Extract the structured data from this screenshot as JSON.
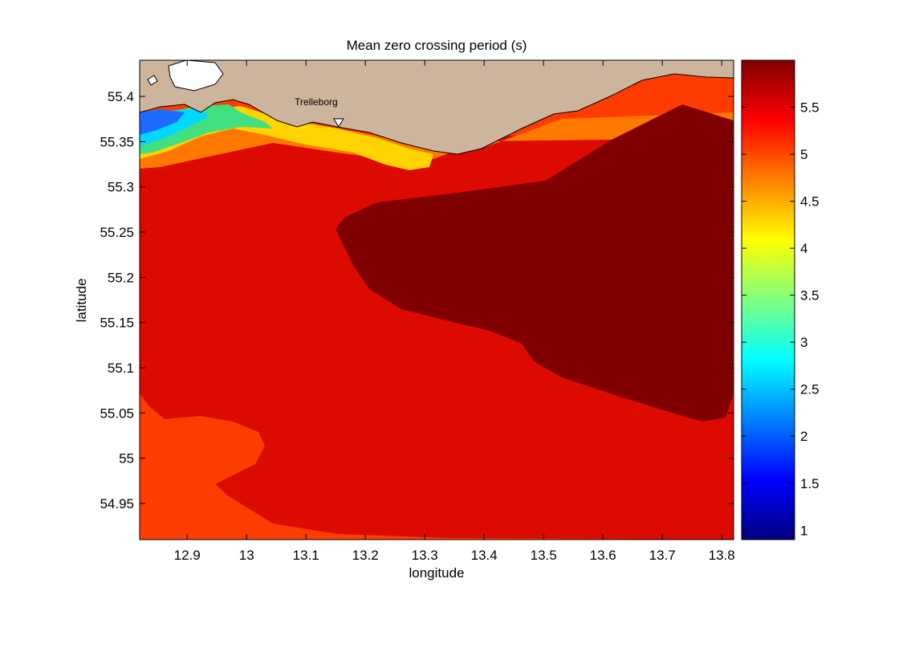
{
  "chart_data": {
    "type": "heatmap",
    "title": "Mean zero crossing period (s)",
    "xlabel": "longitude",
    "ylabel": "latitude",
    "xlim": [
      12.82,
      13.82
    ],
    "ylim": [
      54.91,
      55.44
    ],
    "x_ticks": [
      "12.9",
      "13",
      "13.1",
      "13.2",
      "13.3",
      "13.4",
      "13.5",
      "13.6",
      "13.7",
      "13.8"
    ],
    "x_tick_values": [
      12.9,
      13.0,
      13.1,
      13.2,
      13.3,
      13.4,
      13.5,
      13.6,
      13.7,
      13.8
    ],
    "y_ticks": [
      "54.95",
      "55",
      "55.05",
      "55.1",
      "55.15",
      "55.2",
      "55.25",
      "55.3",
      "55.35",
      "55.4"
    ],
    "y_tick_values": [
      54.95,
      55.0,
      55.05,
      55.1,
      55.15,
      55.2,
      55.25,
      55.3,
      55.35,
      55.4
    ],
    "colorbar": {
      "colormap": "jet",
      "range": [
        0.9,
        6.0
      ],
      "ticks": [
        "1",
        "1.5",
        "2",
        "2.5",
        "3",
        "3.5",
        "4",
        "4.5",
        "5",
        "5.5"
      ],
      "tick_values": [
        1,
        1.5,
        2,
        2.5,
        3,
        3.5,
        4,
        4.5,
        5,
        5.5
      ]
    },
    "grid": false,
    "land_color": "#cdb49c",
    "annotations": [
      {
        "text": "Trelleborg",
        "lon": 13.155,
        "lat": 55.37
      }
    ]
  }
}
